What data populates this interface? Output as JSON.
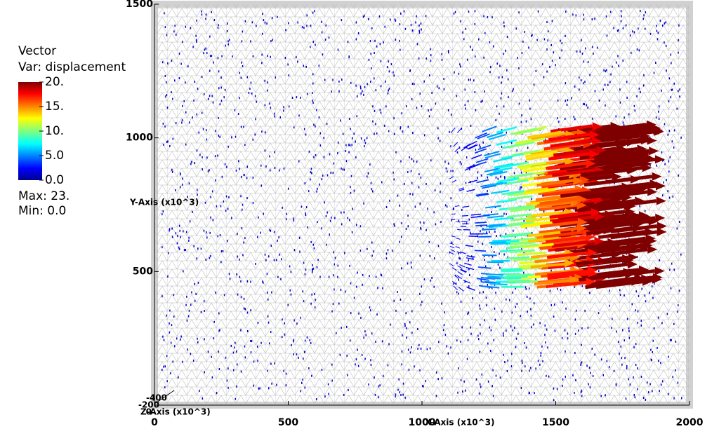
{
  "chart_data": {
    "type": "vector",
    "xlim": [
      0,
      2000
    ],
    "ylim": [
      0,
      1500
    ],
    "xticks": [
      0,
      500,
      1000,
      1500,
      2000
    ],
    "yticks": [
      500,
      1000,
      1500
    ],
    "zticks": [
      -400,
      -200,
      0
    ],
    "x_label": "X-Axis (x10^3)",
    "y_label": "Y-Axis (x10^3)",
    "z_label": "Z-Axis (x10^3)",
    "legend": {
      "title": "Vector",
      "variable": "Var: displacement",
      "lim": [
        0,
        20
      ],
      "ticks": [
        {
          "value": 20,
          "label": "20."
        },
        {
          "value": 15,
          "label": "15."
        },
        {
          "value": 10,
          "label": "10."
        },
        {
          "value": 5,
          "label": "5.0"
        },
        {
          "value": 0,
          "label": "0.0"
        }
      ],
      "max": "Max:  23.",
      "min": "Min:  0.0"
    }
  }
}
